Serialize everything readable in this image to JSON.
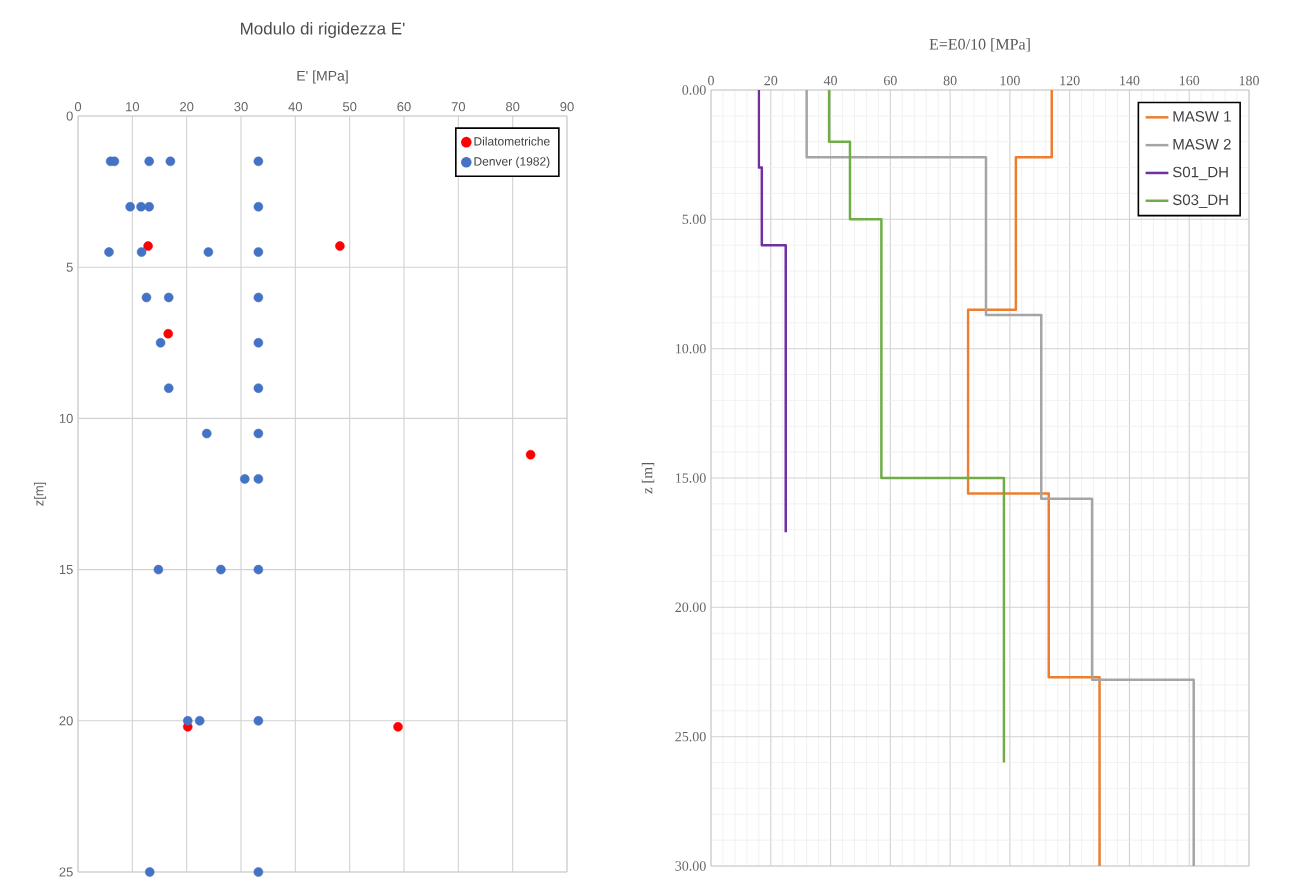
{
  "chart_data": [
    {
      "type": "scatter",
      "title": "Modulo di rigidezza E'",
      "xlabel": "E' [MPa]",
      "ylabel": "z[m]",
      "xlim": [
        0,
        90
      ],
      "xticks": [
        0,
        10,
        20,
        30,
        40,
        50,
        60,
        70,
        80,
        90
      ],
      "ylim": [
        25,
        0
      ],
      "yticks": [
        0,
        5,
        10,
        15,
        20,
        25
      ],
      "grid": true,
      "legend": "top right",
      "marker": "circle",
      "series": [
        {
          "name": "Dilatometriche",
          "color": "#ff0000",
          "x": [
            12.9,
            48.2,
            16.6,
            83.3,
            20.2,
            58.9
          ],
          "values": [
            4.3,
            4.3,
            7.2,
            11.2,
            20.2,
            20.2
          ]
        },
        {
          "name": "Denver (1982)",
          "color": "#4472c4",
          "x": [
            6.0,
            6.7,
            13.1,
            17.0,
            33.2,
            9.6,
            11.6,
            13.1,
            33.2,
            5.7,
            11.7,
            24.0,
            33.2,
            12.6,
            16.7,
            33.2,
            15.2,
            33.2,
            16.7,
            33.2,
            23.7,
            33.2,
            30.7,
            33.2,
            14.8,
            26.3,
            33.2,
            20.2,
            22.4,
            33.2,
            13.2,
            33.2
          ],
          "values": [
            1.5,
            1.5,
            1.5,
            1.5,
            1.5,
            3,
            3,
            3,
            3,
            4.5,
            4.5,
            4.5,
            4.5,
            6,
            6,
            6,
            7.5,
            7.5,
            9,
            9,
            10.5,
            10.5,
            12,
            12,
            15,
            15,
            15,
            20,
            20,
            20,
            25,
            25
          ]
        }
      ]
    },
    {
      "type": "line",
      "xlabel": "E=E0/10 [MPa]",
      "ylabel": "z [m]",
      "xlim": [
        0,
        180
      ],
      "xticks": [
        0,
        {
          "value": 4,
          "label": null
        },
        {
          "value": 8,
          "label": null
        },
        {
          "value": 12,
          "label": null
        },
        {
          "value": 16,
          "label": null
        },
        20,
        {
          "value": 24,
          "label": null
        },
        {
          "value": 28,
          "label": null
        },
        {
          "value": 32,
          "label": null
        },
        {
          "value": 36,
          "label": null
        },
        40,
        {
          "value": 44,
          "label": null
        },
        {
          "value": 48,
          "label": null
        },
        {
          "value": 52,
          "label": null
        },
        {
          "value": 56,
          "label": null
        },
        60,
        {
          "value": 64,
          "label": null
        },
        {
          "value": 68,
          "label": null
        },
        {
          "value": 72,
          "label": null
        },
        {
          "value": 76,
          "label": null
        },
        80,
        {
          "value": 84,
          "label": null
        },
        {
          "value": 88,
          "label": null
        },
        {
          "value": 92,
          "label": null
        },
        {
          "value": 96,
          "label": null
        },
        100,
        {
          "value": 104,
          "label": null
        },
        {
          "value": 108,
          "label": null
        },
        {
          "value": 112,
          "label": null
        },
        {
          "value": 116,
          "label": null
        },
        120,
        {
          "value": 124,
          "label": null
        },
        {
          "value": 128,
          "label": null
        },
        {
          "value": 132,
          "label": null
        },
        {
          "value": 136,
          "label": null
        },
        140,
        {
          "value": 144,
          "label": null
        },
        {
          "value": 148,
          "label": null
        },
        {
          "value": 152,
          "label": null
        },
        {
          "value": 156,
          "label": null
        },
        160,
        {
          "value": 164,
          "label": null
        },
        {
          "value": 168,
          "label": null
        },
        {
          "value": 172,
          "label": null
        },
        {
          "value": 176,
          "label": null
        },
        180
      ],
      "ylim": [
        30,
        0
      ],
      "yticks": [
        {
          "value": 0,
          "label": "0.00"
        },
        {
          "value": 1,
          "label": null
        },
        {
          "value": 2,
          "label": null
        },
        {
          "value": 3,
          "label": null
        },
        {
          "value": 4,
          "label": null
        },
        {
          "value": 5,
          "label": "5.00"
        },
        {
          "value": 6,
          "label": null
        },
        {
          "value": 7,
          "label": null
        },
        {
          "value": 8,
          "label": null
        },
        {
          "value": 9,
          "label": null
        },
        {
          "value": 10,
          "label": "10.00"
        },
        {
          "value": 11,
          "label": null
        },
        {
          "value": 12,
          "label": null
        },
        {
          "value": 13,
          "label": null
        },
        {
          "value": 14,
          "label": null
        },
        {
          "value": 15,
          "label": "15.00"
        },
        {
          "value": 16,
          "label": null
        },
        {
          "value": 17,
          "label": null
        },
        {
          "value": 18,
          "label": null
        },
        {
          "value": 19,
          "label": null
        },
        {
          "value": 20,
          "label": "20.00"
        },
        {
          "value": 21,
          "label": null
        },
        {
          "value": 22,
          "label": null
        },
        {
          "value": 23,
          "label": null
        },
        {
          "value": 24,
          "label": null
        },
        {
          "value": 25,
          "label": "25.00"
        },
        {
          "value": 26,
          "label": null
        },
        {
          "value": 27,
          "label": null
        },
        {
          "value": 28,
          "label": null
        },
        {
          "value": 29,
          "label": null
        },
        {
          "value": 30,
          "label": "30.00"
        }
      ],
      "grid": true,
      "legend": "top right",
      "series": [
        {
          "name": "MASW 1",
          "color": "#ed7d31",
          "x": [
            114,
            114,
            102,
            102,
            86,
            86,
            113,
            113,
            130,
            130
          ],
          "values": [
            0,
            2.6,
            2.6,
            8.5,
            8.5,
            15.6,
            15.6,
            22.7,
            22.7,
            30
          ]
        },
        {
          "name": "MASW 2",
          "color": "#a5a5a5",
          "x": [
            32,
            32,
            92,
            92,
            110.5,
            110.5,
            127.5,
            127.5,
            161.5,
            161.5
          ],
          "values": [
            0,
            2.6,
            2.6,
            8.7,
            8.7,
            15.8,
            15.8,
            22.8,
            22.8,
            30
          ]
        },
        {
          "name": "S01_DH",
          "color": "#7030a0",
          "x": [
            16,
            16,
            17,
            17,
            25,
            25
          ],
          "values": [
            0,
            3,
            3,
            6,
            6,
            17.1
          ]
        },
        {
          "name": "S03_DH",
          "color": "#70ad47",
          "x": [
            39.5,
            39.5,
            46.5,
            46.5,
            57,
            57,
            98,
            98
          ],
          "values": [
            0,
            2,
            2,
            5,
            5,
            15,
            15,
            26
          ]
        }
      ]
    }
  ]
}
